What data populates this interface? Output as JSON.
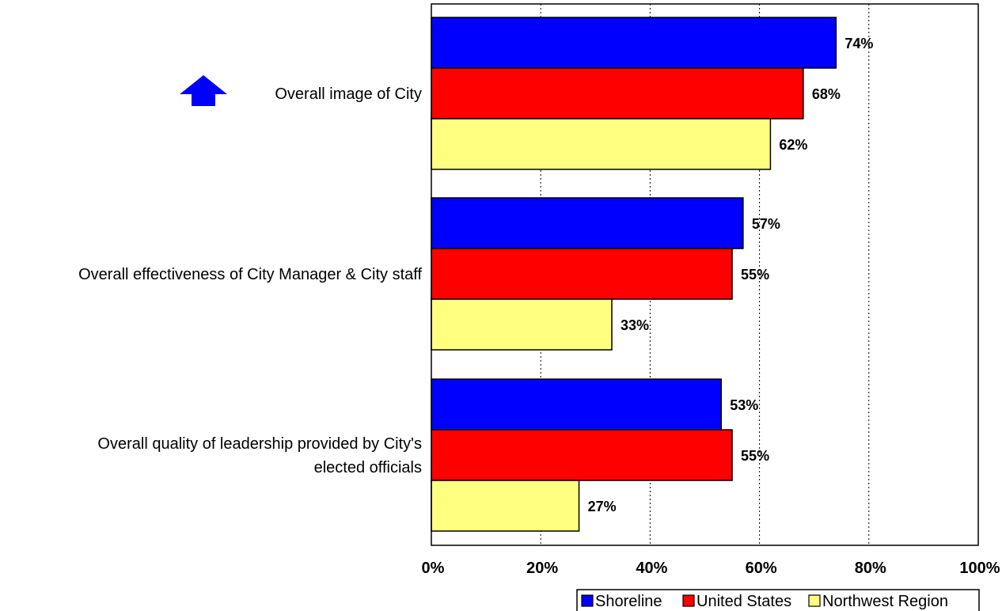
{
  "chart_data": {
    "type": "bar",
    "orientation": "horizontal",
    "categories": [
      [
        "Overall image of City"
      ],
      [
        "Overall effectiveness of City Manager & City staff"
      ],
      [
        "Overall quality of leadership provided by City's",
        "elected officials"
      ]
    ],
    "series": [
      {
        "name": "Shoreline",
        "color": "#0000ff",
        "values": [
          74,
          57,
          53
        ]
      },
      {
        "name": "United States",
        "color": "#ff0000",
        "values": [
          68,
          55,
          55
        ]
      },
      {
        "name": "Northwest Region",
        "color": "#ffff80",
        "values": [
          62,
          33,
          27
        ]
      }
    ],
    "value_suffix": "%",
    "xlim": [
      0,
      100
    ],
    "xticks": [
      0,
      20,
      40,
      60,
      80,
      100
    ],
    "xtick_labels": [
      "0%",
      "20%",
      "40%",
      "60%",
      "80%",
      "100%"
    ],
    "grid": "vertical-dotted",
    "legend_position": "bottom-right",
    "arrow_indicator": {
      "category_index": 0,
      "direction": "up",
      "color": "#0000ff",
      "icon": "up-arrow-icon"
    }
  }
}
